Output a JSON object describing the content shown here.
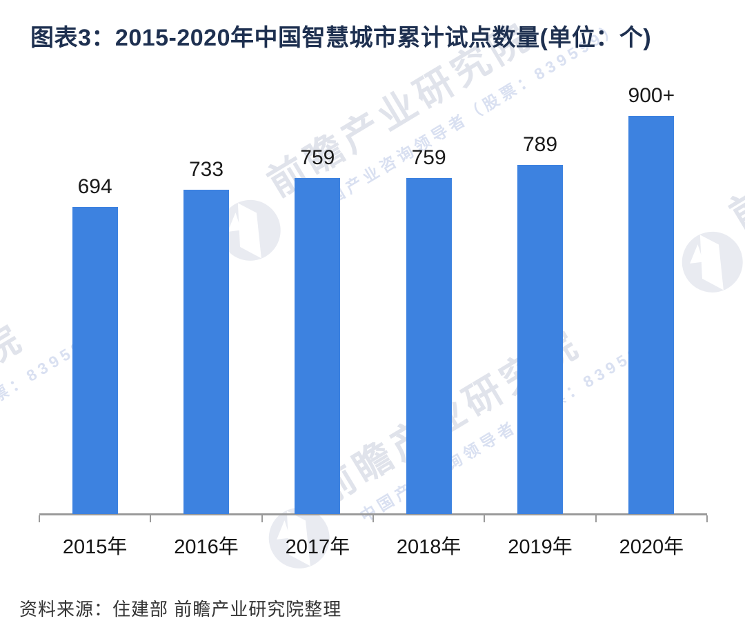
{
  "header": {
    "title": "图表3：2015-2020年中国智慧城市累计试点数量(单位：个)"
  },
  "footer": {
    "source": "资料来源：住建部 前瞻产业研究院整理"
  },
  "watermark": {
    "brand": "前瞻产业研究院",
    "tagline": "中国产业咨询领导者（股票：839599）",
    "big_text_color": "#CBD1DD",
    "tagline_color": "#BAC6E6",
    "logo_color": "#E9EBF1"
  },
  "chart_data": {
    "type": "bar",
    "title": "图表3：2015-2020年中国智慧城市累计试点数量(单位：个)",
    "categories": [
      "2015年",
      "2016年",
      "2017年",
      "2018年",
      "2019年",
      "2020年"
    ],
    "values": [
      694,
      733,
      759,
      759,
      789,
      900
    ],
    "value_labels": [
      "694",
      "733",
      "759",
      "759",
      "789",
      "900+"
    ],
    "unit": "个",
    "xlabel": "",
    "ylabel": "",
    "ylim": [
      0,
      960
    ],
    "grid": false,
    "legend": false,
    "y_axis_shown": false,
    "bar_color": "#3D82E0",
    "axis_color": "#9A9A9A",
    "label_color": "#1A1A1A",
    "title_color": "#1E3050",
    "source": "资料来源：住建部 前瞻产业研究院整理"
  }
}
